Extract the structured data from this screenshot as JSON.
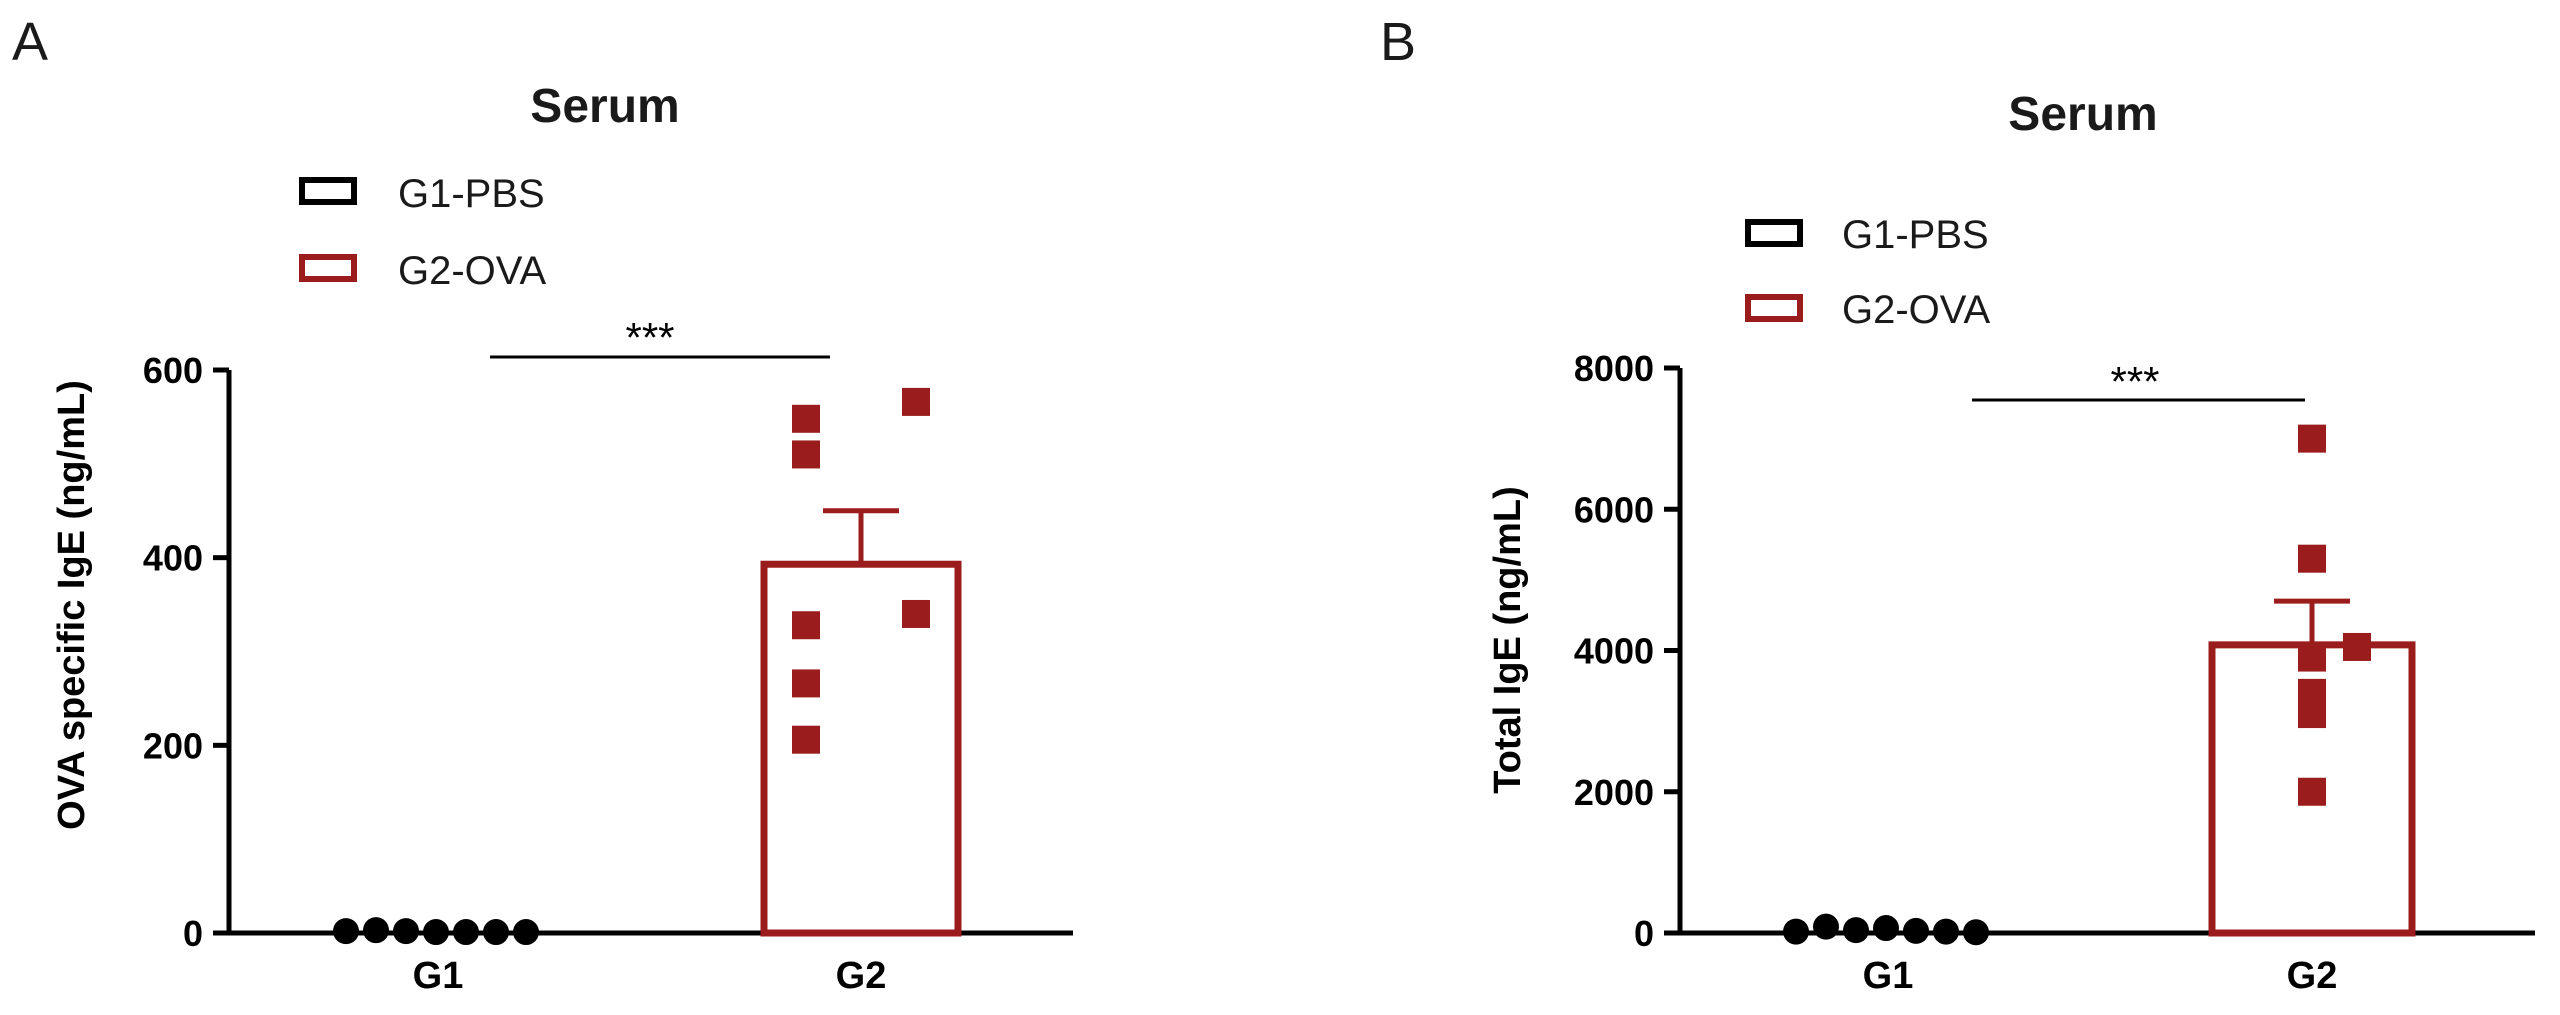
{
  "colors": {
    "g1": "#000000",
    "g2": "#9b1c1c",
    "axis": "#000000"
  },
  "chart_data": [
    {
      "type": "bar",
      "panel": "A",
      "title": "Serum",
      "ylabel": "OVA  specific IgE (ng/mL)",
      "xlabel": "",
      "categories": [
        "G1",
        "G2"
      ],
      "ylim": [
        0,
        600
      ],
      "yticks": [
        "0",
        "200",
        "400",
        "600"
      ],
      "legend": {
        "placement": "top-left",
        "entries": [
          "G1-PBS",
          "G2-OVA"
        ]
      },
      "significance": "***",
      "series": [
        {
          "name": "G1-PBS",
          "category": "G1",
          "mean": 0,
          "sem": 0,
          "marker": "circle",
          "points": [
            2,
            3,
            2,
            1,
            1,
            1,
            1
          ]
        },
        {
          "name": "G2-OVA",
          "category": "G2",
          "mean": 393,
          "sem": 57,
          "marker": "square",
          "points": [
            548,
            566,
            510,
            328,
            340,
            266,
            206
          ]
        }
      ]
    },
    {
      "type": "bar",
      "panel": "B",
      "title": "Serum",
      "ylabel": "Total  IgE (ng/mL)",
      "xlabel": "",
      "categories": [
        "G1",
        "G2"
      ],
      "ylim": [
        0,
        8000
      ],
      "yticks": [
        "0",
        "2000",
        "4000",
        "6000",
        "8000"
      ],
      "legend": {
        "placement": "top-left",
        "entries": [
          "G1-PBS",
          "G2-OVA"
        ]
      },
      "significance": "***",
      "series": [
        {
          "name": "G1-PBS",
          "category": "G1",
          "mean": 60,
          "sem": 0,
          "marker": "circle",
          "points": [
            20,
            90,
            40,
            70,
            30,
            20,
            10
          ]
        },
        {
          "name": "G2-OVA",
          "category": "G2",
          "mean": 4080,
          "sem": 620,
          "marker": "square",
          "points": [
            7000,
            5300,
            3900,
            4050,
            3400,
            3100,
            2000
          ]
        }
      ]
    }
  ]
}
